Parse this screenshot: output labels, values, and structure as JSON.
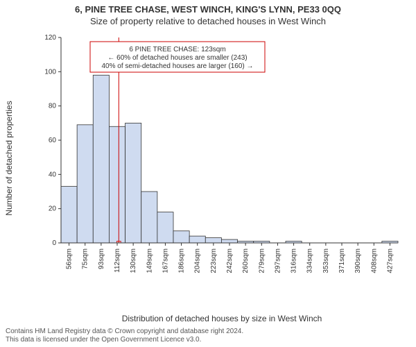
{
  "supertitle": "6, PINE TREE CHASE, WEST WINCH, KING'S LYNN, PE33 0QQ",
  "subtitle": "Size of property relative to detached houses in West Winch",
  "ylabel": "Number of detached properties",
  "xlabel": "Distribution of detached houses by size in West Winch",
  "footer_line1": "Contains HM Land Registry data © Crown copyright and database right 2024.",
  "footer_line2": "This data is licensed under the Open Government Licence v3.0.",
  "chart": {
    "type": "histogram",
    "categories": [
      "56sqm",
      "75sqm",
      "93sqm",
      "112sqm",
      "130sqm",
      "149sqm",
      "167sqm",
      "186sqm",
      "204sqm",
      "223sqm",
      "242sqm",
      "260sqm",
      "279sqm",
      "297sqm",
      "316sqm",
      "334sqm",
      "353sqm",
      "371sqm",
      "390sqm",
      "408sqm",
      "427sqm"
    ],
    "values": [
      33,
      69,
      98,
      68,
      70,
      30,
      18,
      7,
      4,
      3,
      2,
      1,
      1,
      0,
      1,
      0,
      0,
      0,
      0,
      0,
      1
    ],
    "marker": {
      "x_index": 3.6,
      "count": 1,
      "color": "#cc0000"
    },
    "ylim": [
      0,
      120
    ],
    "ytick_step": 20,
    "bar_fill": "#cfdbf0",
    "bar_stroke": "#333333",
    "marker_fill": "#f2c6c6",
    "axis_color": "#333333",
    "background": "#ffffff",
    "label_fontsize": 12,
    "tick_fontsize": 10,
    "bar_width_ratio": 1.0
  },
  "annotation": {
    "border_color": "#cc0000",
    "bg_color": "#ffffff",
    "lines": [
      "6 PINE TREE CHASE: 123sqm",
      "← 60% of detached houses are smaller (243)",
      "40% of semi-detached houses are larger (160) →"
    ],
    "fontsize": 10
  }
}
